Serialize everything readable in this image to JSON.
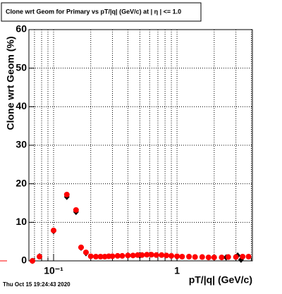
{
  "chart_data": {
    "type": "scatter",
    "title": "Clone wrt Geom for Primary vs pT/|q| (GeV/c) at | η | <= 1.0",
    "xlabel": "pT/|q| (GeV/c)",
    "ylabel": "Clone wrt Geom (%)",
    "timestamp": "Thu Oct 15 19:24:43 2020",
    "xscale": "log",
    "xlim": [
      0.0631,
      4.08
    ],
    "ylim": [
      0,
      60
    ],
    "xticks": [
      {
        "value": 0.1,
        "label": "10⁻¹"
      },
      1
    ],
    "xminorticks": [
      0.07,
      0.08,
      0.09,
      0.2,
      0.3,
      0.4,
      0.5,
      0.6,
      0.7,
      0.8,
      0.9,
      2,
      3,
      4
    ],
    "yticks": [
      0,
      10,
      20,
      30,
      40,
      50,
      60
    ],
    "grid": true,
    "series": [
      {
        "color": "#000000",
        "marker": "diamond",
        "x": [
          0.0674,
          0.0769,
          0.1,
          0.128,
          0.152,
          0.167,
          0.183,
          0.3,
          0.5,
          1.0,
          2.5,
          3.1,
          3.3
        ],
        "values": [
          0,
          1.2,
          7.7,
          16.6,
          12.7,
          3.4,
          2.0,
          1.2,
          1.4,
          1.1,
          0.9,
          1.4,
          0.3
        ]
      },
      {
        "color": "#ff0000",
        "marker": "circle",
        "x": [
          0.0674,
          0.0769,
          0.1,
          0.128,
          0.152,
          0.167,
          0.183,
          0.2,
          0.22,
          0.24,
          0.26,
          0.28,
          0.3,
          0.33,
          0.36,
          0.4,
          0.44,
          0.48,
          0.52,
          0.57,
          0.62,
          0.68,
          0.75,
          0.82,
          0.9,
          1.0,
          1.1,
          1.25,
          1.4,
          1.6,
          1.8,
          2.0,
          2.3,
          2.6,
          3.0,
          3.4,
          3.8
        ],
        "values": [
          0,
          1.1,
          7.9,
          17.2,
          13.2,
          3.5,
          2.2,
          1.2,
          1.1,
          1.1,
          1.1,
          1.2,
          1.2,
          1.3,
          1.3,
          1.4,
          1.4,
          1.5,
          1.5,
          1.6,
          1.6,
          1.5,
          1.5,
          1.4,
          1.3,
          1.2,
          1.1,
          1.1,
          1.0,
          1.0,
          0.9,
          0.9,
          0.9,
          1.0,
          1.0,
          1.1,
          1.1
        ]
      }
    ]
  }
}
